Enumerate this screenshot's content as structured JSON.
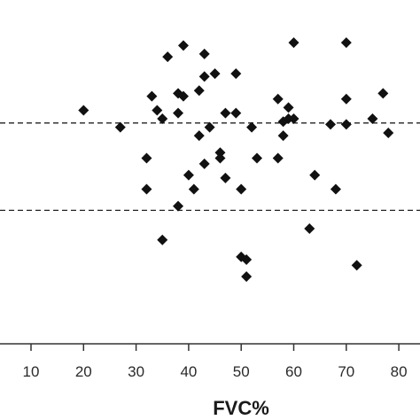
{
  "chart_data": {
    "type": "scatter",
    "title": "",
    "xlabel": "FVC%",
    "ylabel": "",
    "xlim": [
      0,
      82
    ],
    "ylim": [
      0,
      100
    ],
    "x_ticks": [
      10,
      20,
      30,
      40,
      50,
      60,
      70,
      80
    ],
    "x_tick_labels": [
      "10",
      "20",
      "30",
      "40",
      "50",
      "60",
      "70",
      "80"
    ],
    "grid": false,
    "marker": "diamond",
    "marker_color": "#111111",
    "reference_lines": [
      {
        "y": 70.5,
        "style": "dashed"
      },
      {
        "y": 39.5,
        "style": "dashed"
      }
    ],
    "points": [
      [
        20,
        75
      ],
      [
        27,
        69
      ],
      [
        32,
        58
      ],
      [
        32,
        47
      ],
      [
        33,
        80
      ],
      [
        34,
        75
      ],
      [
        35,
        72
      ],
      [
        35,
        29
      ],
      [
        36,
        94
      ],
      [
        38,
        81
      ],
      [
        38,
        74
      ],
      [
        38,
        41
      ],
      [
        39,
        80
      ],
      [
        39,
        98
      ],
      [
        40,
        52
      ],
      [
        41,
        47
      ],
      [
        42,
        82
      ],
      [
        42,
        66
      ],
      [
        43,
        87
      ],
      [
        43,
        95
      ],
      [
        43,
        56
      ],
      [
        44,
        69
      ],
      [
        45,
        88
      ],
      [
        46,
        60
      ],
      [
        46,
        58
      ],
      [
        47,
        51
      ],
      [
        47,
        74
      ],
      [
        49,
        88
      ],
      [
        49,
        74
      ],
      [
        50,
        47
      ],
      [
        50,
        23
      ],
      [
        51,
        22
      ],
      [
        51,
        16
      ],
      [
        52,
        69
      ],
      [
        53,
        58
      ],
      [
        57,
        58
      ],
      [
        57,
        79
      ],
      [
        58,
        66
      ],
      [
        58,
        71
      ],
      [
        59,
        76
      ],
      [
        59,
        72
      ],
      [
        60,
        99
      ],
      [
        60,
        72
      ],
      [
        63,
        33
      ],
      [
        64,
        52
      ],
      [
        67,
        70
      ],
      [
        68,
        47
      ],
      [
        70,
        99
      ],
      [
        70,
        79
      ],
      [
        70,
        70
      ],
      [
        72,
        20
      ],
      [
        75,
        72
      ],
      [
        77,
        81
      ],
      [
        78,
        67
      ]
    ]
  }
}
